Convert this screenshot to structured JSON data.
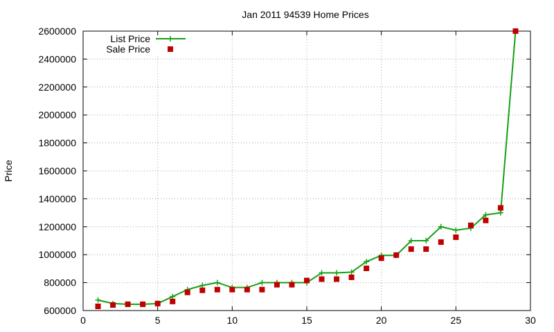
{
  "chart_data": {
    "type": "line",
    "title": "Jan 2011 94539 Home Prices",
    "xlabel": "",
    "ylabel": "Price",
    "xlim": [
      0,
      30
    ],
    "ylim": [
      600000,
      2600000
    ],
    "xticks": [
      "0",
      "5",
      "10",
      "15",
      "20",
      "25",
      "30"
    ],
    "yticks": [
      "600000",
      "800000",
      "1000000",
      "1200000",
      "1400000",
      "1600000",
      "1800000",
      "2000000",
      "2200000",
      "2400000",
      "2600000"
    ],
    "grid": true,
    "legend_position": "top-left",
    "series": [
      {
        "name": "List Price",
        "style": "line-plus",
        "color": "#12a012",
        "x": [
          1,
          2,
          3,
          4,
          5,
          6,
          7,
          8,
          9,
          10,
          11,
          12,
          13,
          14,
          15,
          16,
          17,
          18,
          19,
          20,
          21,
          22,
          23,
          24,
          25,
          26,
          27,
          28,
          29
        ],
        "y": [
          675000,
          650000,
          645000,
          645000,
          650000,
          700000,
          750000,
          780000,
          800000,
          765000,
          765000,
          800000,
          800000,
          800000,
          800000,
          870000,
          870000,
          875000,
          950000,
          995000,
          995000,
          1100000,
          1100000,
          1200000,
          1175000,
          1190000,
          1285000,
          1300000,
          2600000
        ]
      },
      {
        "name": "Sale Price",
        "style": "square-points",
        "color": "#c00000",
        "x": [
          1,
          2,
          3,
          4,
          5,
          6,
          7,
          8,
          9,
          10,
          11,
          12,
          13,
          14,
          15,
          16,
          17,
          18,
          19,
          20,
          21,
          22,
          23,
          24,
          25,
          26,
          27,
          28,
          29
        ],
        "y": [
          630000,
          640000,
          645000,
          645000,
          650000,
          665000,
          730000,
          745000,
          750000,
          750000,
          750000,
          750000,
          785000,
          785000,
          815000,
          825000,
          825000,
          838000,
          902000,
          975000,
          997000,
          1040000,
          1040000,
          1090000,
          1125000,
          1210000,
          1245000,
          1335000,
          2600000
        ]
      }
    ]
  }
}
